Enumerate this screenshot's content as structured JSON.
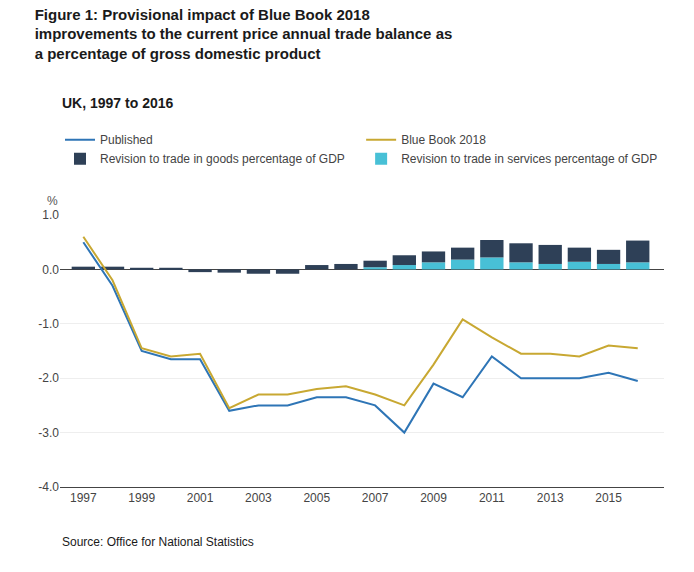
{
  "chart_data": {
    "type": "bar",
    "title": "Figure 1: Provisional impact of Blue Book 2018\nimprovements to the current price annual trade balance as\na percentage of gross domestic product",
    "subtitle": "UK, 1997 to 2016",
    "annotations": [
      "Source: Office for National Statistics"
    ],
    "ylabel": "%",
    "x": [
      1997,
      1998,
      1999,
      2000,
      2001,
      2002,
      2003,
      2004,
      2005,
      2006,
      2007,
      2008,
      2009,
      2010,
      2011,
      2012,
      2013,
      2014,
      2015,
      2016
    ],
    "series": [
      {
        "name": "Published",
        "type": "line",
        "color": "#2E75B6",
        "values": [
          0.5,
          -0.3,
          -1.5,
          -1.65,
          -1.65,
          -2.6,
          -2.5,
          -2.5,
          -2.35,
          -2.35,
          -2.5,
          -3.0,
          -2.1,
          -2.35,
          -1.6,
          -2.0,
          -2.0,
          -2.0,
          -1.9,
          -2.05
        ]
      },
      {
        "name": "Blue Book 2018",
        "type": "line",
        "color": "#C8A832",
        "values": [
          0.6,
          -0.2,
          -1.45,
          -1.6,
          -1.55,
          -2.55,
          -2.3,
          -2.3,
          -2.2,
          -2.15,
          -2.3,
          -2.5,
          -1.75,
          -0.92,
          -1.25,
          -1.55,
          -1.55,
          -1.6,
          -1.4,
          -1.45
        ]
      },
      {
        "name": "Revision to trade in goods percentage of GDP",
        "type": "bar",
        "color": "#2E4057",
        "values": [
          0.05,
          0.05,
          0.03,
          0.03,
          -0.05,
          -0.06,
          -0.08,
          -0.08,
          0.08,
          0.1,
          0.12,
          0.18,
          0.2,
          0.22,
          0.32,
          0.35,
          0.35,
          0.26,
          0.26,
          0.4
        ]
      },
      {
        "name": "Revision to trade in services percentage of GDP",
        "type": "bar",
        "color": "#48C0D6",
        "values": [
          0.0,
          0.0,
          0.0,
          0.0,
          0.0,
          0.0,
          0.0,
          0.0,
          0.0,
          0.0,
          0.04,
          0.08,
          0.13,
          0.18,
          0.22,
          0.13,
          0.1,
          0.14,
          0.1,
          0.13
        ]
      }
    ],
    "stacked": true,
    "xlim": [
      1996.2,
      2016.9
    ],
    "xticks": [
      1997,
      1999,
      2001,
      2003,
      2005,
      2007,
      2009,
      2011,
      2013,
      2015
    ],
    "ylim": [
      -4.0,
      1.0
    ],
    "yticks": [
      {
        "value": -4.0,
        "label": "-4.0"
      },
      {
        "value": -3.0,
        "label": "-3.0"
      },
      {
        "value": -2.0,
        "label": "-2.0"
      },
      {
        "value": -1.0,
        "label": "-1.0"
      },
      {
        "value": 0.0,
        "label": "0.0"
      },
      {
        "value": 1.0,
        "label": "1.0"
      }
    ],
    "grid": "y",
    "legend": "top"
  }
}
